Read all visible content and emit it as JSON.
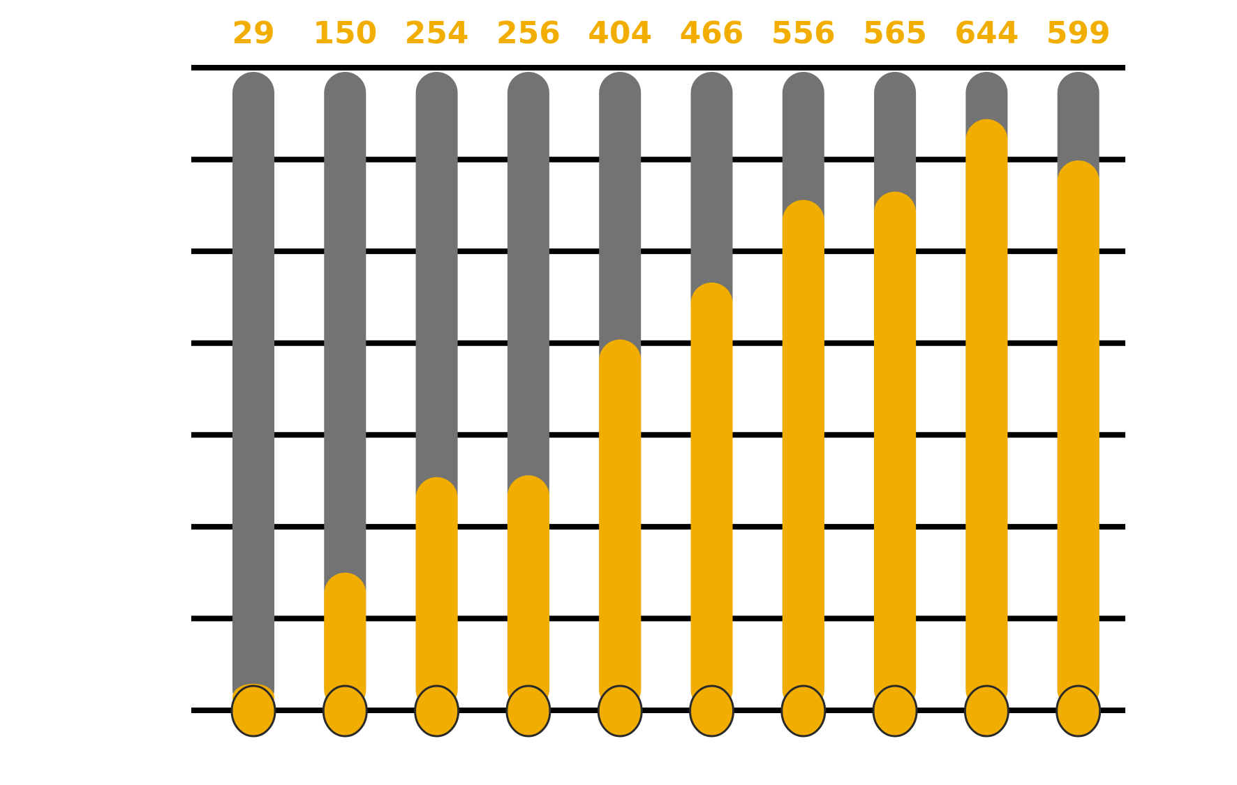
{
  "chart_data": {
    "type": "bar",
    "title": "",
    "xlabel": "",
    "ylabel": "",
    "values": [
      29,
      150,
      254,
      256,
      404,
      466,
      556,
      565,
      644,
      599
    ],
    "ylim": [
      0,
      700
    ],
    "grid": true,
    "gridline_count": 8,
    "show_data_labels": true,
    "legend": "none",
    "colors": {
      "value_fill": "#F2AE00",
      "track_fill": "#737373",
      "gridline": "#000000",
      "label_text": "#F2AE00",
      "marker_outline": "#2a2a2a"
    }
  }
}
